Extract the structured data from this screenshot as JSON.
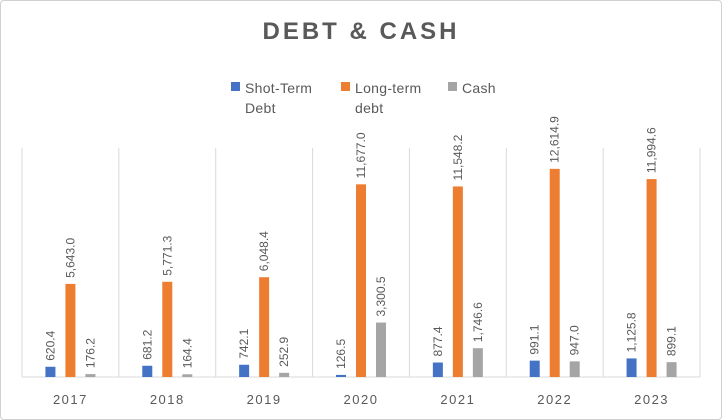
{
  "chart_data": {
    "type": "bar",
    "title": "DEBT & CASH",
    "categories": [
      "2017",
      "2018",
      "2019",
      "2020",
      "2021",
      "2022",
      "2023"
    ],
    "series": [
      {
        "name": "Shot-Term Debt",
        "color": "#4472c4",
        "values": [
          620.4,
          681.2,
          742.1,
          126.5,
          877.4,
          991.1,
          1125.8
        ],
        "labels": [
          "620.4",
          "681.2",
          "742.1",
          "126.5",
          "877.4",
          "991.1",
          "1,125.8"
        ]
      },
      {
        "name": "Long-term debt",
        "color": "#ed7d31",
        "values": [
          5643.0,
          5771.3,
          6048.4,
          11677.0,
          11548.2,
          12614.9,
          11994.6
        ],
        "labels": [
          "5,643.0",
          "5,771.3",
          "6,048.4",
          "11,677.0",
          "11,548.2",
          "12,614.9",
          "11,994.6"
        ]
      },
      {
        "name": "Cash",
        "color": "#a5a5a5",
        "values": [
          176.2,
          164.4,
          252.9,
          3300.5,
          1746.6,
          947.0,
          899.1
        ],
        "labels": [
          "176.2",
          "164.4",
          "252.9",
          "3,300.5",
          "1,746.6",
          "947.0",
          "899.1"
        ]
      }
    ],
    "legend_position": "top",
    "grid": "vertical category separators",
    "ylim": [
      0,
      14000
    ]
  },
  "legend": [
    {
      "line1": "Shot-Term",
      "line2": "Debt",
      "color": "#4472c4"
    },
    {
      "line1": "Long-term",
      "line2": "debt",
      "color": "#ed7d31"
    },
    {
      "line1": "Cash",
      "line2": "",
      "color": "#a5a5a5"
    }
  ]
}
